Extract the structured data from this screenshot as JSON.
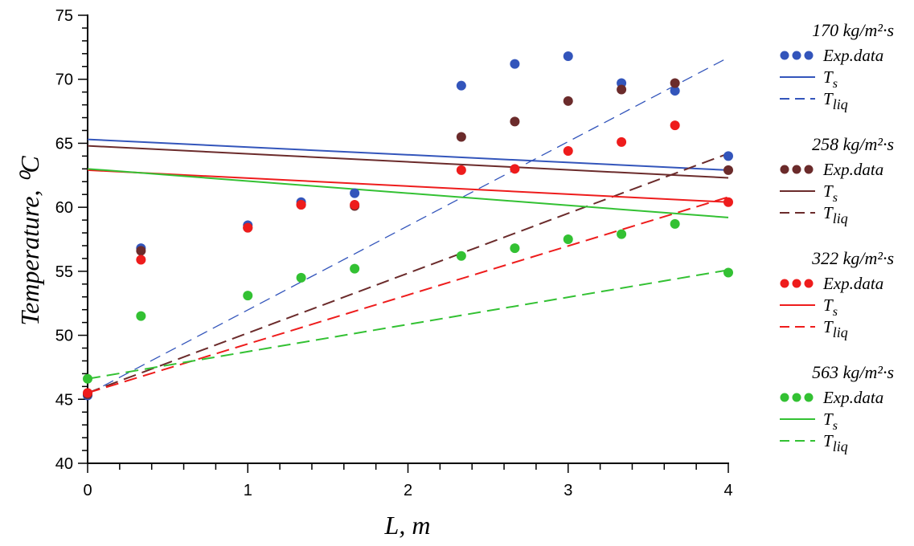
{
  "chart_data": {
    "type": "scatter",
    "xlabel": "L, m",
    "ylabel": "Temperature, ⁰C",
    "xlim": [
      0,
      4
    ],
    "ylim": [
      40,
      75
    ],
    "xticks": [
      "0",
      "1",
      "2",
      "3",
      "4"
    ],
    "yticks": [
      "40",
      "45",
      "50",
      "55",
      "60",
      "65",
      "70",
      "75"
    ],
    "grid": false,
    "legend_position": "right",
    "x": [
      0,
      0.333,
      1.0,
      1.333,
      1.667,
      2.333,
      2.667,
      3.0,
      3.333,
      3.667,
      4.0
    ],
    "groups": [
      {
        "title": "170 kg/m²·s",
        "color": "#3355bb",
        "points_label": "Exp.data",
        "ts_label": "Ts",
        "tliq_label": "Tliq",
        "exp": [
          45.3,
          56.8,
          58.6,
          60.4,
          61.1,
          69.5,
          71.2,
          71.8,
          69.7,
          69.1,
          64.0
        ],
        "ts": [
          65.3,
          62.9
        ],
        "tliq": [
          45.4,
          71.7
        ],
        "tliq_dash": "14 8",
        "tliq_width": 1.3
      },
      {
        "title": "258 kg/m²·s",
        "color": "#6b2b2b",
        "points_label": "Exp.data",
        "ts_label": "Ts",
        "tliq_label": "Tliq",
        "exp": [
          45.4,
          56.6,
          58.4,
          60.2,
          60.1,
          65.5,
          66.7,
          68.3,
          69.2,
          69.7,
          62.9
        ],
        "ts": [
          64.8,
          62.3
        ],
        "tliq": [
          45.5,
          64.2
        ],
        "tliq_dash": "16 8",
        "tliq_width": 2
      },
      {
        "title": "322 kg/m²·s",
        "color": "#ee1c1c",
        "points_label": "Exp.data",
        "ts_label": "Ts",
        "tliq_label": "Tliq",
        "exp": [
          45.5,
          55.9,
          58.4,
          60.2,
          60.2,
          62.9,
          63.0,
          64.4,
          65.1,
          66.4,
          60.4
        ],
        "ts": [
          62.9,
          60.4
        ],
        "tliq": [
          45.5,
          60.8
        ],
        "tliq_dash": "16 8",
        "tliq_width": 2
      },
      {
        "title": "563 kg/m²·s",
        "color": "#33c133",
        "points_label": "Exp.data",
        "ts_label": "Ts",
        "tliq_label": "Tliq",
        "exp": [
          46.6,
          51.5,
          53.1,
          54.5,
          55.2,
          56.2,
          56.8,
          57.5,
          57.9,
          58.7,
          54.9
        ],
        "ts": [
          63.0,
          59.2
        ],
        "tliq": [
          46.6,
          55.1
        ],
        "tliq_dash": "16 8",
        "tliq_width": 2
      }
    ]
  }
}
